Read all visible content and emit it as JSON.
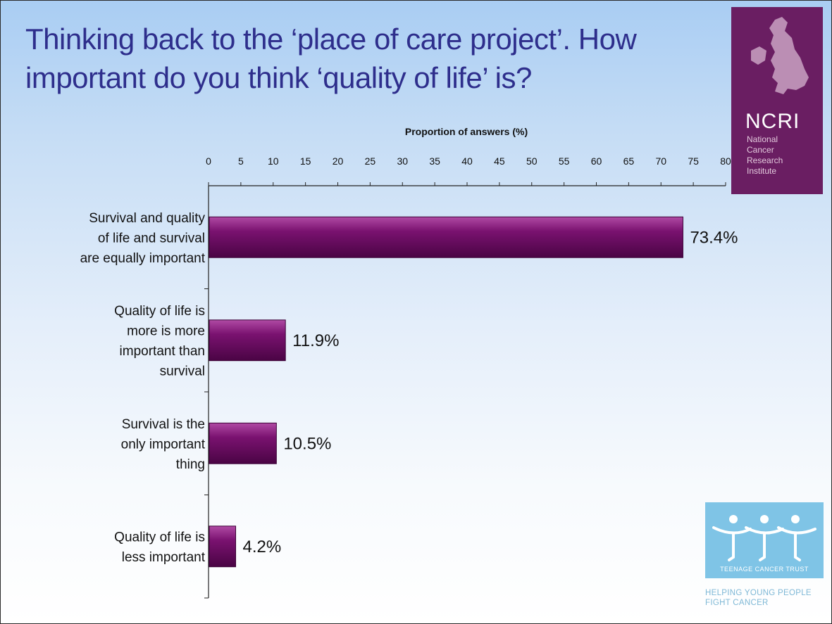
{
  "slide": {
    "title": "Thinking back to the ‘place of care project’. How important do you think ‘quality of life’ is?"
  },
  "chart_data": {
    "type": "bar",
    "orientation": "horizontal",
    "title": "Thinking back to the ‘place of care project’. How important do you think ‘quality of life’ is?",
    "xlabel": "Proportion of answers  (%)",
    "ylabel": "",
    "xlim": [
      0,
      80
    ],
    "ticks": [
      0,
      5,
      10,
      15,
      20,
      25,
      30,
      35,
      40,
      45,
      50,
      55,
      60,
      65,
      70,
      75,
      80
    ],
    "categories": [
      [
        "Survival and quality",
        "of life and survival",
        "are equally important"
      ],
      [
        "Quality of life is",
        "more is more",
        "important than",
        "survival"
      ],
      [
        "Survival is the",
        "only important",
        "thing"
      ],
      [
        "Quality of life is",
        "less important"
      ]
    ],
    "values": [
      73.4,
      11.9,
      10.5,
      4.2
    ],
    "data_labels": [
      "73.4%",
      "11.9%",
      "10.5%",
      "4.2%"
    ],
    "bar_color": "#6b0a62",
    "grid": false,
    "legend": "none"
  },
  "logos": {
    "ncri": {
      "abbr": "NCRI",
      "full_name": [
        "National",
        "Cancer",
        "Research",
        "Institute"
      ],
      "color": "#6a1e62"
    },
    "tct": {
      "name": "TEENAGE CANCER TRUST",
      "tagline": [
        "HELPING YOUNG PEOPLE",
        "FIGHT CANCER"
      ],
      "color": "#7fc4e6"
    }
  }
}
